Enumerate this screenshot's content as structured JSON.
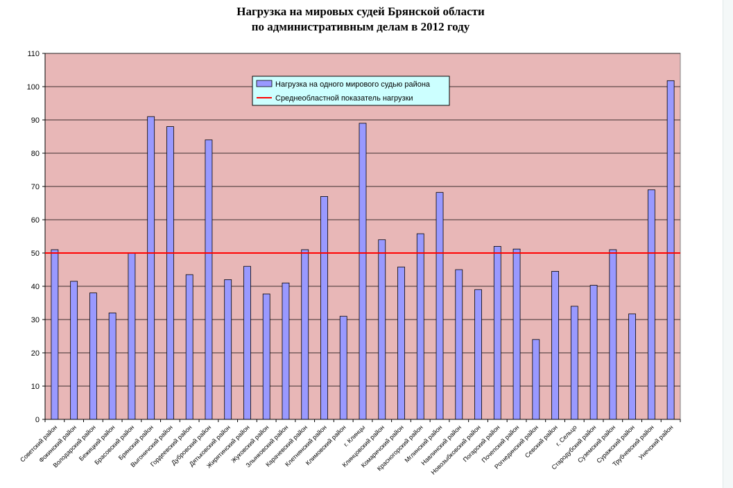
{
  "chart_data": {
    "type": "bar",
    "title": "Нагрузка на мировых судей Брянской области",
    "subtitle": "по административным делам в 2012 году",
    "xlabel": "",
    "ylabel": "",
    "ylim": [
      0,
      110
    ],
    "yticks": [
      0,
      10,
      20,
      30,
      40,
      50,
      60,
      70,
      80,
      90,
      100,
      110
    ],
    "grid": true,
    "legend_position": "top-center",
    "plot_background": "#e8b7b7",
    "categories": [
      "Советский район",
      "Фокинский район",
      "Володарский район",
      "Бежицкий район",
      "Брасовский район",
      "Брянский район",
      "Выгоничский район",
      "Гордеевский район",
      "Дубровский район",
      "Дятьковский район",
      "Жирятинский район",
      "Жуковский район",
      "Злынковский район",
      "Карачевский район",
      "Клетнянский район",
      "Климовский район",
      "г. Клинцы",
      "Клинцовский район",
      "Комаричский район",
      "Красногорский район",
      "Мглинский район",
      "Навлинский район",
      "Новозыбковский район",
      "Погарский район",
      "Почепский район",
      "Рогнединский район",
      "Севский район",
      "г. Сельцо",
      "Стародубский район",
      "Суземский район",
      "Суражский район",
      "Трубчевский район",
      "Унечский район"
    ],
    "series": [
      {
        "name": "Нагрузка на одного мирового судью района",
        "color": "#9999ff",
        "values": [
          51,
          41.5,
          38,
          32,
          50,
          91,
          88,
          43.5,
          84,
          42,
          46,
          37.7,
          41,
          51,
          67,
          31,
          89,
          54,
          45.8,
          55.8,
          68.2,
          45,
          39,
          52,
          51.2,
          24,
          44.5,
          34,
          40.3,
          51,
          31.7,
          69,
          101.8
        ]
      },
      {
        "name": "Среднеобластной показатель нагрузки",
        "color": "#ff0000",
        "type": "line",
        "value": 50
      }
    ]
  }
}
